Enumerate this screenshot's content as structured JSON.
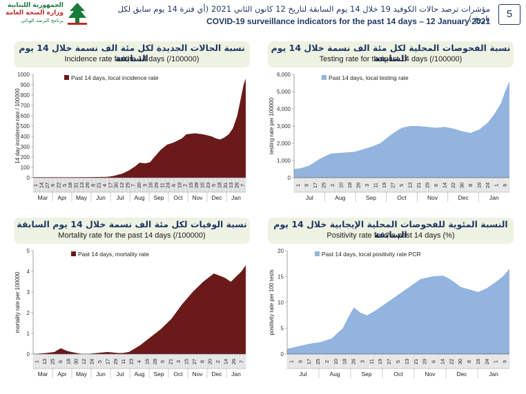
{
  "header": {
    "org_line1": "الجمهورية اللبنانية",
    "org_line2": "وزارة الصحة العامة",
    "org_line3": "برنامج الترصد الوبائي",
    "title_ar": "مؤشرات ترصد حالات الكوفيد 19 خلال 14 يوم السابقة لتاريخ 12 كانون الثاني 2021 (أي فترة 14 يوم سابق لكل تاريخ )",
    "title_en": "COVID-19 surveillance indicators for the past 14 days – 12 January 2021",
    "page_number": "5"
  },
  "colors": {
    "maroon": "#6b1a1a",
    "blue": "#92b4de",
    "navy": "#1f3864",
    "panel_bg": "#eef2e3"
  },
  "panels": [
    {
      "title_ar": "نسبة الحالات الجديدة لكل مئة الف نسمة خلال 14 يوم السابقة",
      "title_en": "Incidence rate for the 14 days  (/100000)"
    },
    {
      "title_ar": "نسبة الفحوصات المحلية لكل مئة الف نسمة خلال 14 يوم السابقة",
      "title_en": "Testing rate for the past 14 days (/100000)"
    },
    {
      "title_ar": "نسبة الوفيات لكل مئة الف نسمة خلال 14 يوم السابقة",
      "title_en": "Mortality rate for the past 14 days (/100000)"
    },
    {
      "title_ar": "النسبة المئوية للفحوصات المحلية الإيجابية خلال 14 يوم السابقة",
      "title_en": "Positivity rate for the past 14 days (%)"
    }
  ],
  "chart_data": [
    {
      "type": "area",
      "title": "Incidence rate for the 14 days  (/100000)",
      "ylabel": "14 day incidence rate / 100000",
      "legend": "Past 14 days, local incidence rate",
      "ylim": [
        0,
        1000
      ],
      "yticks": [
        0,
        100,
        200,
        300,
        400,
        500,
        600,
        700,
        800,
        900,
        1000
      ],
      "ytick_labels": [
        "0",
        "100",
        "200",
        "300",
        "400",
        "500",
        "600",
        "700",
        "800",
        "900",
        "1000"
      ],
      "day_ticks": [
        "1",
        "14",
        "27",
        "9",
        "22",
        "5",
        "18",
        "31",
        "13",
        "26",
        "8",
        "21",
        "4",
        "17",
        "30",
        "12",
        "25",
        "7",
        "20",
        "3",
        "16",
        "29",
        "11",
        "24",
        "6",
        "19",
        "2",
        "15",
        "28",
        "10",
        "23",
        "5",
        "18",
        "31",
        "13",
        "26",
        "7"
      ],
      "months": [
        "Mar",
        "Apr",
        "May",
        "Jun",
        "Jul",
        "Aug",
        "Sep",
        "Oct",
        "Nov",
        "Dec",
        "Jan"
      ],
      "x": [
        0,
        0.2,
        0.35,
        0.38,
        0.42,
        0.45,
        0.48,
        0.5,
        0.53,
        0.55,
        0.57,
        0.6,
        0.63,
        0.66,
        0.7,
        0.72,
        0.76,
        0.8,
        0.84,
        0.86,
        0.88,
        0.9,
        0.92,
        0.94,
        0.96,
        0.975,
        0.99,
        1.0
      ],
      "y": [
        5,
        5,
        8,
        18,
        40,
        70,
        110,
        145,
        140,
        150,
        200,
        270,
        320,
        340,
        380,
        420,
        430,
        420,
        400,
        380,
        370,
        390,
        420,
        480,
        600,
        750,
        900,
        960
      ],
      "color": "#6b1a1a"
    },
    {
      "type": "area",
      "title": "Testing rate for the past 14 days (/100000)",
      "ylabel": "testing rate per 100000",
      "legend": "Past 14 days, local testing rate",
      "ylim": [
        0,
        6000
      ],
      "yticks": [
        0,
        1000,
        2000,
        3000,
        4000,
        5000,
        6000
      ],
      "ytick_labels": [
        "0",
        "1,000",
        "2,000",
        "3,000",
        "4,000",
        "5,000",
        "6,000"
      ],
      "day_ticks": [
        "1",
        "9",
        "17",
        "25",
        "2",
        "10",
        "18",
        "26",
        "3",
        "11",
        "19",
        "27",
        "5",
        "13",
        "21",
        "29",
        "6",
        "14",
        "22",
        "30",
        "8",
        "16",
        "24",
        "1",
        "9"
      ],
      "months": [
        "Jul",
        "Aug",
        "Sep",
        "Oct",
        "Nov",
        "Dec",
        "Jan"
      ],
      "x": [
        0,
        0.03,
        0.07,
        0.12,
        0.17,
        0.22,
        0.28,
        0.32,
        0.36,
        0.4,
        0.45,
        0.5,
        0.54,
        0.58,
        0.62,
        0.66,
        0.7,
        0.74,
        0.78,
        0.82,
        0.86,
        0.9,
        0.93,
        0.96,
        0.98,
        1.0
      ],
      "y": [
        500,
        550,
        700,
        1100,
        1400,
        1450,
        1500,
        1650,
        1800,
        2000,
        2500,
        2900,
        3000,
        3000,
        2950,
        2900,
        2950,
        2850,
        2700,
        2600,
        2800,
        3200,
        3700,
        4300,
        5000,
        5600
      ],
      "color": "#92b4de"
    },
    {
      "type": "area",
      "title": "Mortality rate for the past 14 days (/100000)",
      "ylabel": "mortality rate per 100000",
      "legend": "Past 14 days, mortality rate",
      "ylim": [
        0,
        5
      ],
      "yticks": [
        0,
        1,
        2,
        3,
        4,
        5
      ],
      "ytick_labels": [
        "0",
        "1",
        "2",
        "3",
        "4",
        "5"
      ],
      "day_ticks": [
        "1",
        "13",
        "25",
        "6",
        "18",
        "30",
        "12",
        "24",
        "5",
        "17",
        "29",
        "11",
        "23",
        "4",
        "16",
        "28",
        "9",
        "21",
        "3",
        "15",
        "27",
        "8",
        "20",
        "2",
        "14",
        "26",
        "7"
      ],
      "months": [
        "Mar",
        "Apr",
        "May",
        "Jun",
        "Jul",
        "Aug",
        "Sep",
        "Oct",
        "Nov",
        "Dec",
        "Jan"
      ],
      "x": [
        0,
        0.06,
        0.1,
        0.13,
        0.16,
        0.19,
        0.22,
        0.25,
        0.3,
        0.35,
        0.4,
        0.42,
        0.45,
        0.5,
        0.55,
        0.6,
        0.65,
        0.7,
        0.75,
        0.8,
        0.85,
        0.9,
        0.93,
        0.96,
        0.98,
        1.0
      ],
      "y": [
        0,
        0.05,
        0.1,
        0.28,
        0.15,
        0.08,
        0.02,
        0,
        0.05,
        0.1,
        0.05,
        0.05,
        0.1,
        0.4,
        0.8,
        1.2,
        1.7,
        2.4,
        3.0,
        3.5,
        3.9,
        3.7,
        3.5,
        3.8,
        4.0,
        4.3
      ],
      "color": "#6b1a1a"
    },
    {
      "type": "area",
      "title": "Positivity rate for the past 14 days (%)",
      "ylabel": "positivity rate per 100 tests",
      "legend": "Past 14 days, local positivity rate PCR",
      "ylim": [
        0,
        20
      ],
      "yticks": [
        0,
        5,
        10,
        15,
        20
      ],
      "ytick_labels": [
        "0",
        "5",
        "10",
        "15",
        "20"
      ],
      "day_ticks": [
        "1",
        "9",
        "17",
        "25",
        "2",
        "10",
        "18",
        "26",
        "3",
        "11",
        "19",
        "27",
        "5",
        "13",
        "21",
        "29",
        "6",
        "14",
        "22",
        "30",
        "8",
        "16",
        "24",
        "1",
        "9"
      ],
      "months": [
        "Jul",
        "Aug",
        "Sep",
        "Oct",
        "Nov",
        "Dec",
        "Jan"
      ],
      "x": [
        0,
        0.05,
        0.1,
        0.15,
        0.2,
        0.25,
        0.28,
        0.3,
        0.33,
        0.36,
        0.4,
        0.45,
        0.5,
        0.55,
        0.6,
        0.65,
        0.7,
        0.72,
        0.75,
        0.78,
        0.82,
        0.86,
        0.9,
        0.94,
        0.97,
        1.0
      ],
      "y": [
        1,
        1.5,
        2,
        2.3,
        3,
        5,
        7.5,
        9,
        8,
        7.5,
        8.5,
        10,
        11.5,
        13,
        14.5,
        15,
        15.2,
        14.8,
        14,
        13,
        12.5,
        12,
        12.8,
        14,
        15,
        16.5
      ],
      "color": "#92b4de"
    }
  ]
}
